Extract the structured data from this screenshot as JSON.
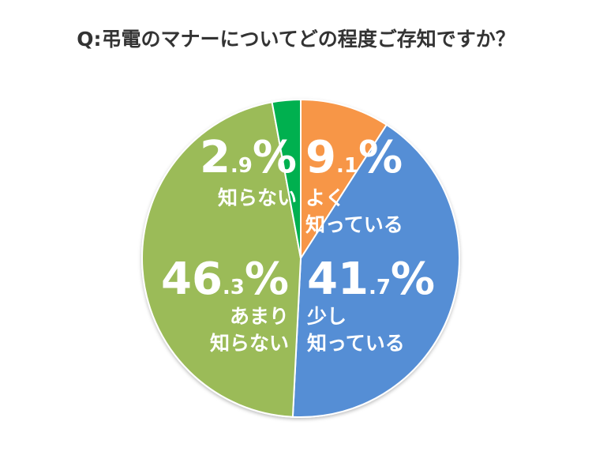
{
  "title": "Q:弔電のマナーについてどの程度ご存知ですか？",
  "chart_data": {
    "type": "pie",
    "title": "Q:弔電のマナーについてどの程度ご存知ですか？",
    "categories": [
      "よく知っている",
      "少し知っている",
      "あまり知らない",
      "知らない"
    ],
    "values": [
      9.1,
      41.7,
      46.3,
      2.9
    ],
    "colors": [
      "#F79646",
      "#558ED5",
      "#9BBB59",
      "#00B050"
    ],
    "start_angle": "12 o'clock, clockwise",
    "legend": "none (data labels inside slices)"
  },
  "labels": [
    {
      "int": "9",
      "dec": ".1",
      "pct": "%",
      "line1": "よく",
      "line2": "知っている"
    },
    {
      "int": "41",
      "dec": ".7",
      "pct": "%",
      "line1": "少し",
      "line2": "知っている"
    },
    {
      "int": "46",
      "dec": ".3",
      "pct": "%",
      "line1": "あまり",
      "line2": "知らない"
    },
    {
      "int": "2",
      "dec": ".9",
      "pct": "%",
      "line1": "知らない",
      "line2": ""
    }
  ]
}
